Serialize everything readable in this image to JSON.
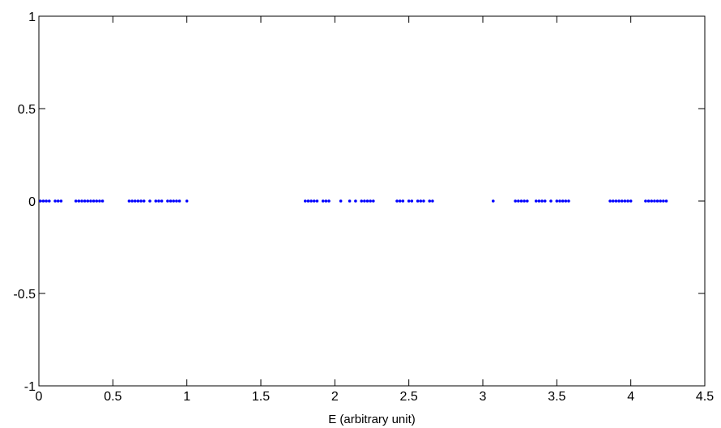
{
  "chart_data": {
    "type": "scatter",
    "title": "",
    "xlabel": "E (arbitrary unit)",
    "ylabel": "",
    "xlim": [
      0,
      4.5
    ],
    "ylim": [
      -1,
      1
    ],
    "xticks": [
      "0",
      "0.5",
      "1",
      "1.5",
      "2",
      "2.5",
      "3",
      "3.5",
      "4",
      "4.5"
    ],
    "yticks": [
      "-1",
      "-0.5",
      "0",
      "0.5",
      "1"
    ],
    "grid": false,
    "legend": "none",
    "marker_color": "#0000ff",
    "series": [
      {
        "x": [
          0.01,
          0.03,
          0.05,
          0.07,
          0.11,
          0.13,
          0.15,
          0.25,
          0.27,
          0.29,
          0.31,
          0.33,
          0.35,
          0.37,
          0.39,
          0.41,
          0.43,
          0.61,
          0.63,
          0.65,
          0.67,
          0.69,
          0.71,
          0.75,
          0.79,
          0.81,
          0.83,
          0.87,
          0.89,
          0.91,
          0.93,
          0.95,
          1.0,
          1.8,
          1.82,
          1.84,
          1.86,
          1.88,
          1.92,
          1.94,
          1.96,
          2.04,
          2.1,
          2.14,
          2.18,
          2.2,
          2.22,
          2.24,
          2.26,
          2.42,
          2.44,
          2.46,
          2.5,
          2.52,
          2.56,
          2.58,
          2.6,
          2.64,
          2.66,
          3.07,
          3.22,
          3.24,
          3.26,
          3.28,
          3.3,
          3.36,
          3.38,
          3.4,
          3.42,
          3.46,
          3.5,
          3.52,
          3.54,
          3.56,
          3.58,
          3.86,
          3.88,
          3.9,
          3.92,
          3.94,
          3.96,
          3.98,
          4.0,
          4.1,
          4.12,
          4.14,
          4.16,
          4.18,
          4.2,
          4.22,
          4.24
        ],
        "y_all": 0
      }
    ]
  }
}
